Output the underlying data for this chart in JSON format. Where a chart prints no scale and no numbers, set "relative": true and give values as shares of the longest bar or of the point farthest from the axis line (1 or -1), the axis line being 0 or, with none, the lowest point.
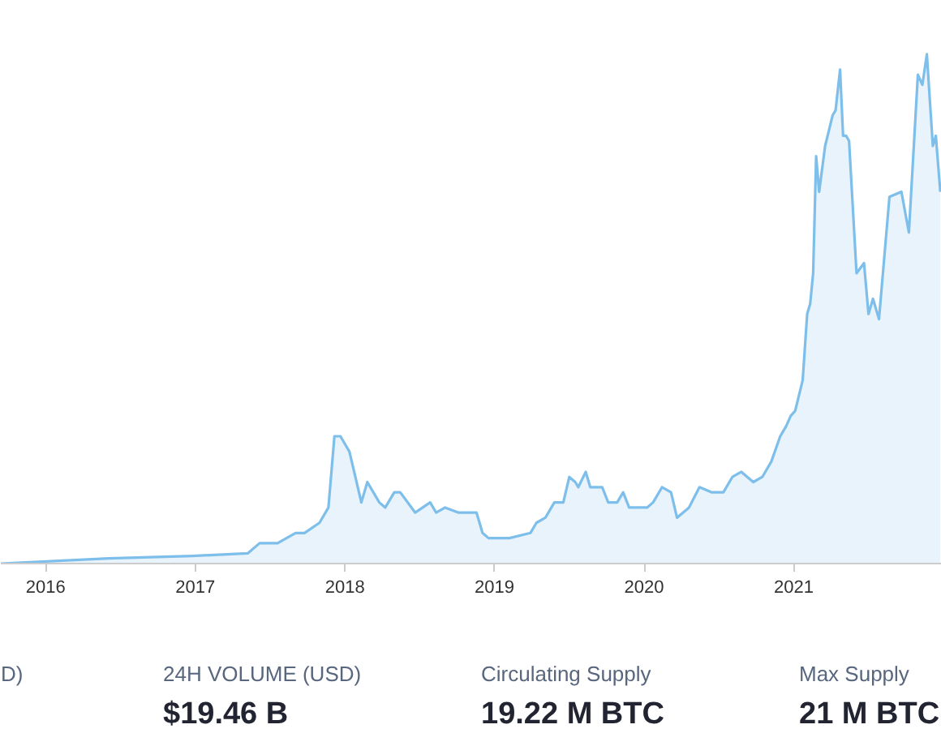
{
  "chart_data": {
    "type": "area",
    "relative": true,
    "x": [
      2015.7,
      2016.42,
      2016.98,
      2017.35,
      2017.43,
      2017.55,
      2017.67,
      2017.73,
      2017.83,
      2017.89,
      2017.93,
      2017.97,
      2018.03,
      2018.07,
      2018.11,
      2018.15,
      2018.23,
      2018.27,
      2018.33,
      2018.37,
      2018.47,
      2018.57,
      2018.61,
      2018.67,
      2018.76,
      2018.88,
      2018.92,
      2018.96,
      2019.1,
      2019.24,
      2019.28,
      2019.34,
      2019.4,
      2019.46,
      2019.5,
      2019.54,
      2019.56,
      2019.61,
      2019.64,
      2019.72,
      2019.76,
      2019.82,
      2019.86,
      2019.9,
      2020.02,
      2020.06,
      2020.12,
      2020.18,
      2020.22,
      2020.3,
      2020.37,
      2020.45,
      2020.53,
      2020.59,
      2020.65,
      2020.73,
      2020.79,
      2020.85,
      2020.91,
      2020.95,
      2020.98,
      2021.01,
      2021.06,
      2021.09,
      2021.11,
      2021.13,
      2021.15,
      2021.17,
      2021.21,
      2021.26,
      2021.28,
      2021.31,
      2021.33,
      2021.35,
      2021.37,
      2021.42,
      2021.47,
      2021.5,
      2021.53,
      2021.57,
      2021.64,
      2021.72,
      2021.77,
      2021.83,
      2021.86,
      2021.89,
      2021.93,
      2021.95,
      2021.98
    ],
    "series": [
      {
        "color": "#7dbfea",
        "values": [
          0.0,
          0.01,
          0.015,
          0.02,
          0.04,
          0.04,
          0.06,
          0.06,
          0.08,
          0.11,
          0.25,
          0.25,
          0.22,
          0.17,
          0.12,
          0.16,
          0.12,
          0.11,
          0.14,
          0.14,
          0.1,
          0.12,
          0.1,
          0.11,
          0.1,
          0.1,
          0.06,
          0.05,
          0.05,
          0.06,
          0.08,
          0.09,
          0.12,
          0.12,
          0.17,
          0.16,
          0.15,
          0.18,
          0.15,
          0.15,
          0.12,
          0.12,
          0.14,
          0.11,
          0.11,
          0.12,
          0.15,
          0.14,
          0.09,
          0.11,
          0.15,
          0.14,
          0.14,
          0.17,
          0.18,
          0.16,
          0.17,
          0.2,
          0.25,
          0.27,
          0.29,
          0.3,
          0.36,
          0.49,
          0.51,
          0.57,
          0.8,
          0.73,
          0.82,
          0.88,
          0.89,
          0.97,
          0.84,
          0.84,
          0.83,
          0.57,
          0.59,
          0.49,
          0.52,
          0.48,
          0.72,
          0.73,
          0.65,
          0.96,
          0.94,
          1.0,
          0.82,
          0.84,
          0.73
        ]
      }
    ],
    "xlim": [
      2015.7,
      2021.99
    ],
    "xticks": [
      2016,
      2017,
      2018,
      2019,
      2020,
      2021
    ],
    "annotations": [
      "D)",
      "24H VOLUME (USD)",
      "$19.46 B",
      "Circulating Supply",
      "19.22 M BTC",
      "Max Supply",
      "21 M BTC"
    ]
  }
}
